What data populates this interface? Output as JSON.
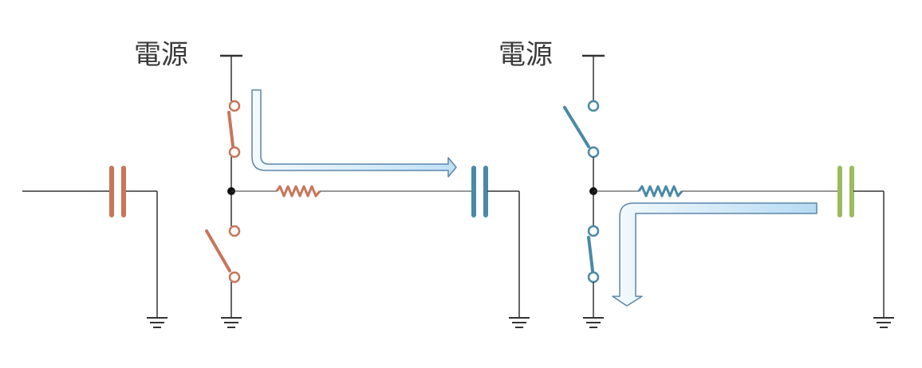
{
  "labels": {
    "power_left": "電源",
    "power_right": "電源"
  },
  "colors": {
    "wire": "#333333",
    "orange": "#c8755a",
    "teal": "#4a89a6",
    "green": "#9cba5e",
    "arrow_fill": "#cde6f6",
    "arrow_stroke": "#5c86a8"
  },
  "icons": {
    "capacitor": "capacitor-icon",
    "resistor": "resistor-icon",
    "switch": "switch-icon",
    "ground": "ground-icon",
    "junction": "junction-dot"
  }
}
